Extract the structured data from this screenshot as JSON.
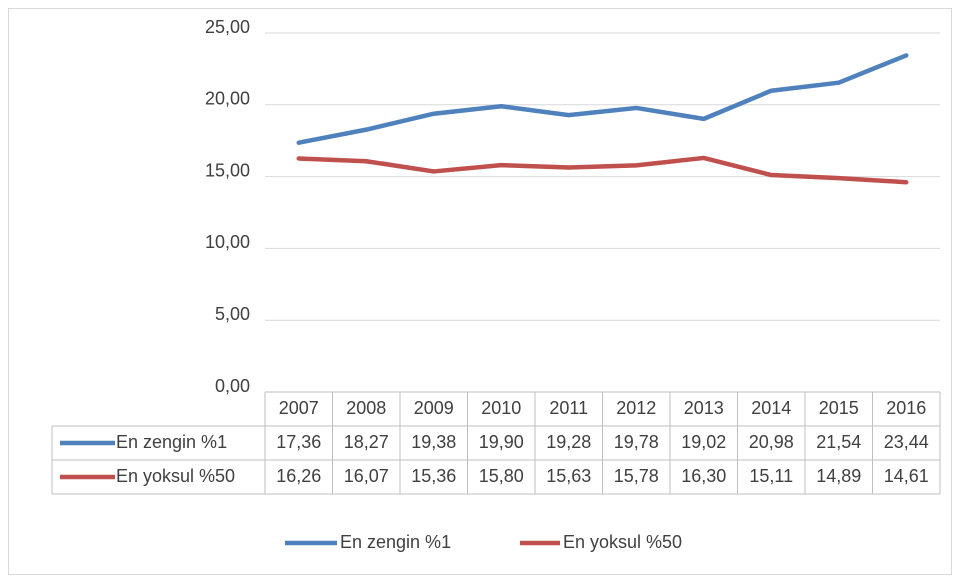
{
  "chart_data": {
    "type": "line",
    "categories": [
      "2007",
      "2008",
      "2009",
      "2010",
      "2011",
      "2012",
      "2013",
      "2014",
      "2015",
      "2016"
    ],
    "series": [
      {
        "name": "En zengin %1",
        "color": "#4f81bd",
        "values": [
          17.36,
          18.27,
          19.38,
          19.9,
          19.28,
          19.78,
          19.02,
          20.98,
          21.54,
          23.44
        ],
        "value_labels": [
          "17,36",
          "18,27",
          "19,38",
          "19,90",
          "19,28",
          "19,78",
          "19,02",
          "20,98",
          "21,54",
          "23,44"
        ]
      },
      {
        "name": "En yoksul %50",
        "color": "#c0504d",
        "values": [
          16.26,
          16.07,
          15.36,
          15.8,
          15.63,
          15.78,
          16.3,
          15.11,
          14.89,
          14.61
        ],
        "value_labels": [
          "16,26",
          "16,07",
          "15,36",
          "15,80",
          "15,63",
          "15,78",
          "16,30",
          "15,11",
          "14,89",
          "14,61"
        ]
      }
    ],
    "ylim": [
      0,
      25
    ],
    "yticks": [
      {
        "value": 0,
        "label": "0,00"
      },
      {
        "value": 5,
        "label": "5,00"
      },
      {
        "value": 10,
        "label": "10,00"
      },
      {
        "value": 15,
        "label": "15,00"
      },
      {
        "value": 20,
        "label": "20,00"
      },
      {
        "value": 25,
        "label": "25,00"
      }
    ],
    "grid": true,
    "legend": "bottom"
  }
}
